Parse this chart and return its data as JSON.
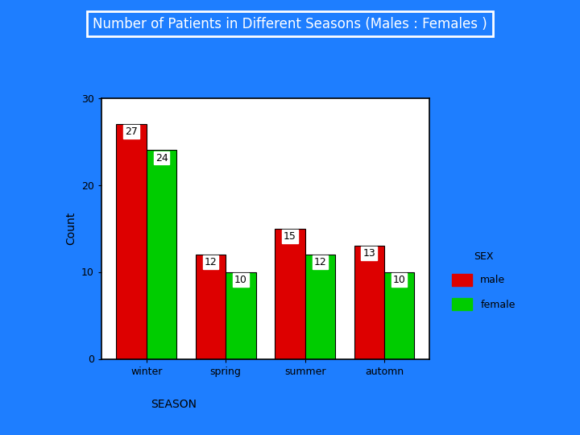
{
  "title": "Number of Patients in Different Seasons (Males : Females )",
  "seasons": [
    "winter",
    "spring",
    "summer",
    "automn"
  ],
  "male_values": [
    27,
    12,
    15,
    13
  ],
  "female_values": [
    24,
    10,
    12,
    10
  ],
  "male_color": "#DD0000",
  "female_color": "#00CC00",
  "xlabel": "SEASON",
  "ylabel": "Count",
  "legend_title": "SEX",
  "legend_male": "male",
  "legend_female": "female",
  "ylim": [
    0,
    30
  ],
  "yticks": [
    0,
    10,
    20,
    30
  ],
  "background_color": "#1E7EFF",
  "plot_bg_color": "#FFFFFF",
  "title_color": "#FFFFFF",
  "title_box_edge_color": "#FFFFFF",
  "bar_width": 0.38
}
